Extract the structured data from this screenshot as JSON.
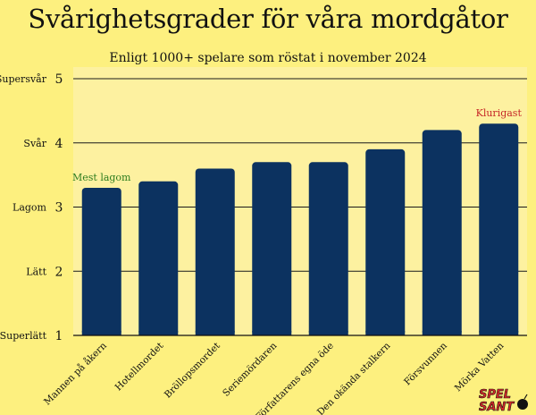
{
  "title": "Svårighetsgrader för våra mordgåtor",
  "subtitle": "Enligt 1000+ spelare som röstat i november 2024",
  "chart_data": {
    "type": "bar",
    "title": "Svårighetsgrader för våra mordgåtor",
    "subtitle": "Enligt 1000+ spelare som röstat i november 2024",
    "categories": [
      "Mannen på åkern",
      "Hotellmordet",
      "Bröllopsmordet",
      "Seriemördaren",
      "Författarens egna öde",
      "Den okända stalkern",
      "Försvunnen",
      "Mörka Vatten"
    ],
    "values": [
      3.3,
      3.4,
      3.6,
      3.7,
      3.7,
      3.9,
      4.2,
      4.3
    ],
    "ylim": [
      1,
      5
    ],
    "yticks": [
      1,
      2,
      3,
      4,
      5
    ],
    "ytick_names": [
      "Superlätt",
      "Lätt",
      "Lagom",
      "Svår",
      "Supersvår"
    ],
    "grid": true,
    "annotations": [
      {
        "category": "Mannen på åkern",
        "text": "Mest lagom",
        "color": "#2e7d1f"
      },
      {
        "category": "Mörka Vatten",
        "text": "Klurigast",
        "color": "#c62828"
      }
    ]
  },
  "colors": {
    "background": "#fdf07f",
    "plot_background": "#fdf1a0",
    "bar": "#0c3260",
    "grid": "#1a1a1a"
  },
  "logo": {
    "line1": "SPEL",
    "line2": "SANT"
  }
}
